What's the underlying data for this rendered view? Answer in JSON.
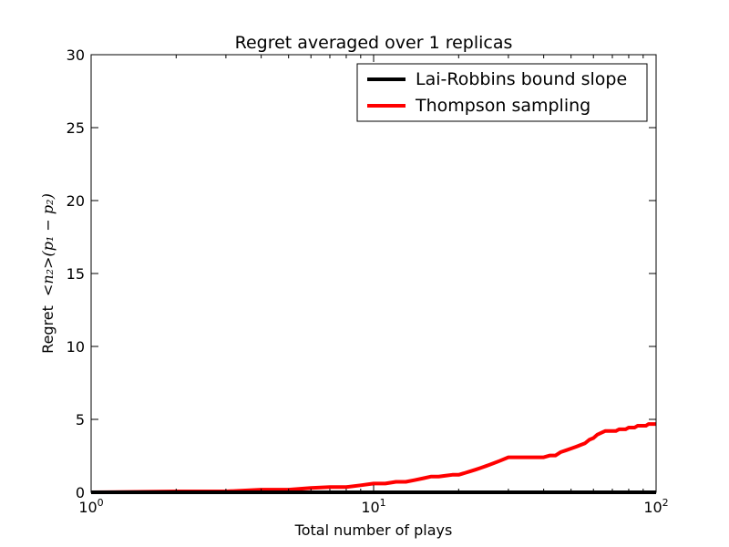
{
  "chart_data": {
    "type": "line",
    "title": "Regret averaged over 1 replicas",
    "xlabel": "Total number of plays",
    "ylabel_prefix": "Regret",
    "ylabel_math": "<n₂>(p₁ − p₂)",
    "x_scale": "log",
    "xlim": [
      1,
      100
    ],
    "ylim": [
      0,
      30
    ],
    "x_ticks": [
      {
        "value": 1,
        "base": "10",
        "exp": "0"
      },
      {
        "value": 10,
        "base": "10",
        "exp": "1"
      },
      {
        "value": 100,
        "base": "10",
        "exp": "2"
      }
    ],
    "y_ticks": [
      {
        "value": 0,
        "label": "0"
      },
      {
        "value": 5,
        "label": "5"
      },
      {
        "value": 10,
        "label": "10"
      },
      {
        "value": 15,
        "label": "15"
      },
      {
        "value": 20,
        "label": "20"
      },
      {
        "value": 25,
        "label": "25"
      },
      {
        "value": 30,
        "label": "30"
      }
    ],
    "grid": false,
    "legend_position": "top-right",
    "series": [
      {
        "name": "Lai-Robbins bound slope",
        "color": "#000000",
        "x": [
          1,
          100
        ],
        "y": [
          0,
          0
        ]
      },
      {
        "name": "Thompson sampling",
        "color": "#ff0000",
        "x": [
          1,
          2,
          3,
          4,
          5,
          6,
          7,
          8,
          9,
          10,
          11,
          12,
          13,
          14,
          15,
          16,
          17,
          18,
          19,
          20,
          21,
          22,
          23,
          24,
          25,
          26,
          28,
          30,
          32,
          34,
          36,
          38,
          40,
          42,
          44,
          46,
          48,
          50,
          52,
          54,
          56,
          58,
          60,
          62,
          64,
          66,
          68,
          70,
          72,
          74,
          76,
          78,
          80,
          82,
          84,
          86,
          88,
          90,
          92,
          94,
          96,
          98,
          100
        ],
        "y": [
          0.0,
          0.06,
          0.06,
          0.18,
          0.18,
          0.3,
          0.36,
          0.36,
          0.48,
          0.6,
          0.6,
          0.72,
          0.72,
          0.84,
          0.96,
          1.08,
          1.08,
          1.14,
          1.2,
          1.2,
          1.32,
          1.44,
          1.56,
          1.68,
          1.8,
          1.92,
          2.16,
          2.4,
          2.4,
          2.4,
          2.4,
          2.4,
          2.4,
          2.52,
          2.52,
          2.76,
          2.88,
          3.0,
          3.12,
          3.24,
          3.36,
          3.6,
          3.72,
          3.96,
          4.08,
          4.2,
          4.2,
          4.2,
          4.2,
          4.32,
          4.32,
          4.32,
          4.44,
          4.44,
          4.44,
          4.56,
          4.56,
          4.56,
          4.56,
          4.68,
          4.68,
          4.68,
          4.68
        ]
      }
    ]
  }
}
